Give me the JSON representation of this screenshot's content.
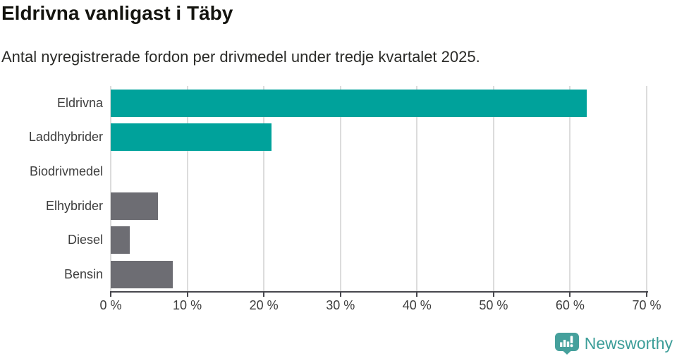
{
  "header": {
    "title": "Eldrivna vanligast i Täby",
    "subtitle": "Antal nyregistrerade fordon per drivmedel under tredje kvartalet 2025."
  },
  "chart_data": {
    "type": "bar",
    "orientation": "horizontal",
    "title": "Eldrivna vanligast i Täby",
    "subtitle": "Antal nyregistrerade fordon per drivmedel under tredje kvartalet 2025.",
    "categories": [
      "Eldrivna",
      "Laddhybrider",
      "Biodrivmedel",
      "Elhybrider",
      "Diesel",
      "Bensin"
    ],
    "values": [
      62.2,
      21.0,
      0.0,
      6.2,
      2.5,
      8.1
    ],
    "unit": "%",
    "xlim": [
      0,
      70
    ],
    "x_ticks": [
      "0 %",
      "10 %",
      "20 %",
      "30 %",
      "40 %",
      "50 %",
      "60 %",
      "70 %"
    ],
    "grid": true,
    "legend": "none",
    "bar_colors": [
      "#00a29b",
      "#00a29b",
      "#00a29b",
      "#6d6d73",
      "#6d6d73",
      "#6d6d73"
    ],
    "highlight_color": "#00a29b",
    "default_color": "#6d6d73",
    "gridline_color": "#dcdcdc",
    "axis_color": "#47474d"
  },
  "footer": {
    "brand": "Newsworthy",
    "logo_icon": "newsworthy-speech-bubble-barchart-icon",
    "logo_color": "#45a09c",
    "text_color": "#3d9e99"
  }
}
